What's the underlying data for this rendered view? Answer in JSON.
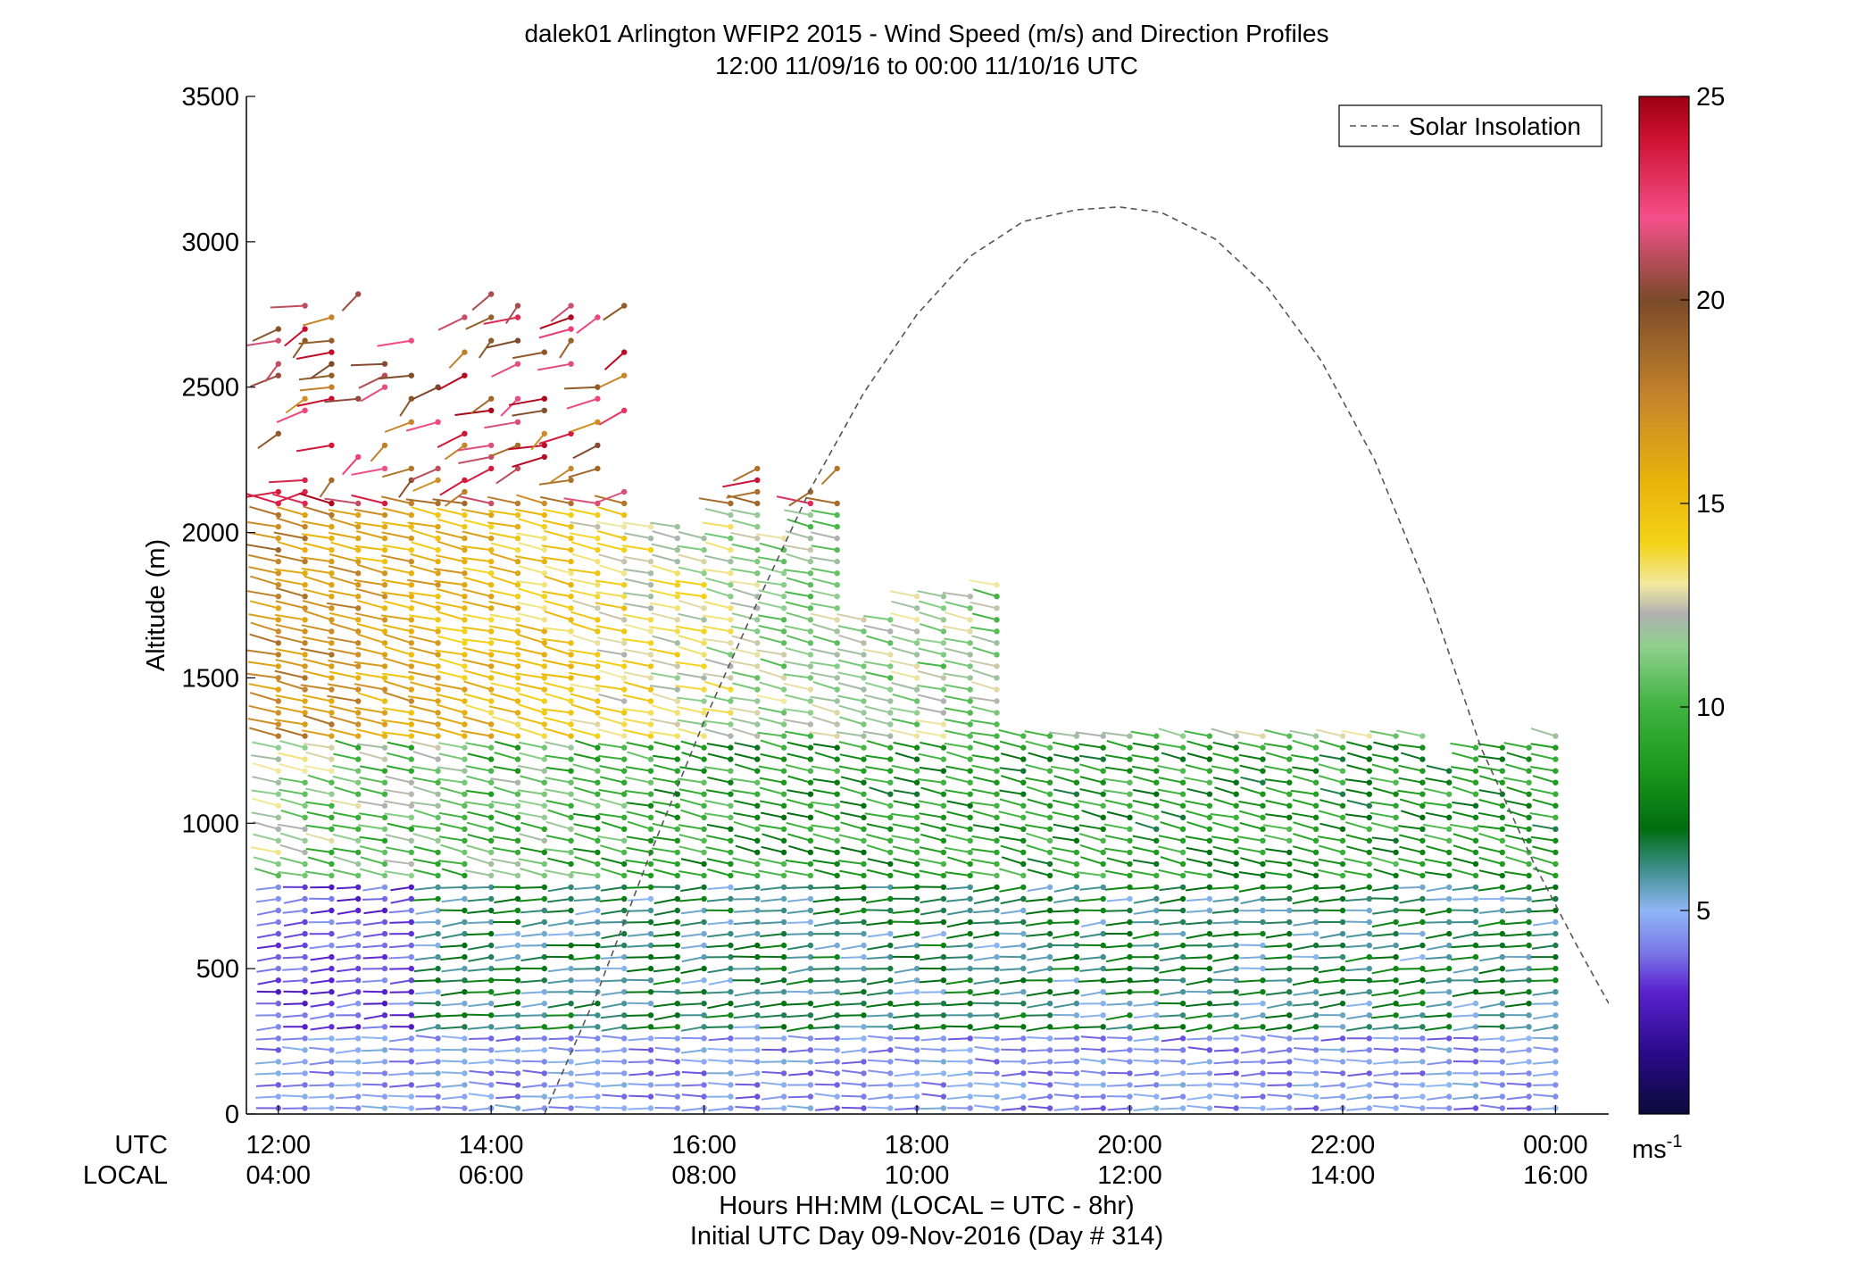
{
  "chart_data": {
    "type": "scatter",
    "title": "dalek01 Arlington WFIP2 2015 - Wind Speed (m/s) and Direction Profiles",
    "subtitle": "12:00 11/09/16 to 00:00 11/10/16  UTC",
    "ylabel": "Altitude (m)",
    "ylim": [
      0,
      3500
    ],
    "y_ticks": [
      "0",
      "500",
      "1000",
      "1500",
      "2000",
      "2500",
      "3000",
      "3500"
    ],
    "x_row_labels": {
      "utc": "UTC",
      "local": "LOCAL"
    },
    "x_ticks_utc": [
      "12:00",
      "14:00",
      "16:00",
      "18:00",
      "20:00",
      "22:00",
      "00:00"
    ],
    "x_ticks_local": [
      "04:00",
      "06:00",
      "08:00",
      "10:00",
      "12:00",
      "14:00",
      "16:00"
    ],
    "xlabel": "Hours HH:MM  (LOCAL = UTC - 8hr)",
    "xlabel2": "Initial UTC Day 09-Nov-2016 (Day # 314)",
    "xlim_hours": [
      11.7,
      24.5
    ],
    "colorbar": {
      "range": [
        0,
        25
      ],
      "ticks": [
        "5",
        "10",
        "15",
        "20",
        "25"
      ],
      "unit_base": "ms",
      "unit_exp": "-1",
      "stops": [
        {
          "v": 0,
          "c": "#0b0b3a"
        },
        {
          "v": 1.5,
          "c": "#2a0a8a"
        },
        {
          "v": 3,
          "c": "#5a22cf"
        },
        {
          "v": 4,
          "c": "#7a7ae8"
        },
        {
          "v": 5,
          "c": "#8fb6f5"
        },
        {
          "v": 6,
          "c": "#3f8f8f"
        },
        {
          "v": 7,
          "c": "#006d10"
        },
        {
          "v": 8.5,
          "c": "#1c9a1c"
        },
        {
          "v": 10,
          "c": "#3fb33f"
        },
        {
          "v": 11.5,
          "c": "#8fd08f"
        },
        {
          "v": 12.3,
          "c": "#b0b0b0"
        },
        {
          "v": 13,
          "c": "#f2e9a0"
        },
        {
          "v": 14,
          "c": "#f3d31a"
        },
        {
          "v": 15.5,
          "c": "#eab40a"
        },
        {
          "v": 17.5,
          "c": "#c8872a"
        },
        {
          "v": 20,
          "c": "#7a4a2a"
        },
        {
          "v": 22,
          "c": "#f5508a"
        },
        {
          "v": 24,
          "c": "#cc1030"
        },
        {
          "v": 25,
          "c": "#9a0010"
        }
      ]
    },
    "legend": {
      "entries": [
        "Solar Insolation"
      ],
      "position": "top-right"
    },
    "solar_insolation": {
      "x_hours": [
        14.5,
        15.0,
        15.5,
        16.0,
        16.5,
        17.0,
        17.5,
        18.0,
        18.5,
        19.0,
        19.5,
        19.9,
        20.3,
        20.8,
        21.3,
        21.8,
        22.3,
        22.8,
        23.3,
        23.8,
        24.2,
        24.5
      ],
      "y": [
        0,
        420,
        900,
        1350,
        1760,
        2150,
        2480,
        2750,
        2950,
        3070,
        3110,
        3120,
        3100,
        3010,
        2840,
        2590,
        2250,
        1800,
        1260,
        860,
        580,
        380
      ]
    },
    "series": [
      {
        "name": "wind barbs",
        "x_hours_start": 12.0,
        "x_hours_step": 0.25,
        "x_hours_end": 24.0,
        "altitude_step_m": 40,
        "profile_description_bands": [
          {
            "alt_range_m": [
              0,
              300
            ],
            "speed_ms": [
              3,
              5
            ]
          },
          {
            "alt_range_m": [
              300,
              800
            ],
            "speed_ms": [
              3,
              7
            ]
          },
          {
            "alt_range_m": [
              800,
              1300
            ],
            "speed_ms": [
              6,
              11
            ]
          },
          {
            "alt_range_m": [
              1300,
              2100
            ],
            "speed_ms": [
              10,
              17
            ]
          },
          {
            "alt_range_m": [
              2100,
              3200
            ],
            "speed_ms": [
              17,
              25
            ]
          }
        ]
      }
    ]
  }
}
